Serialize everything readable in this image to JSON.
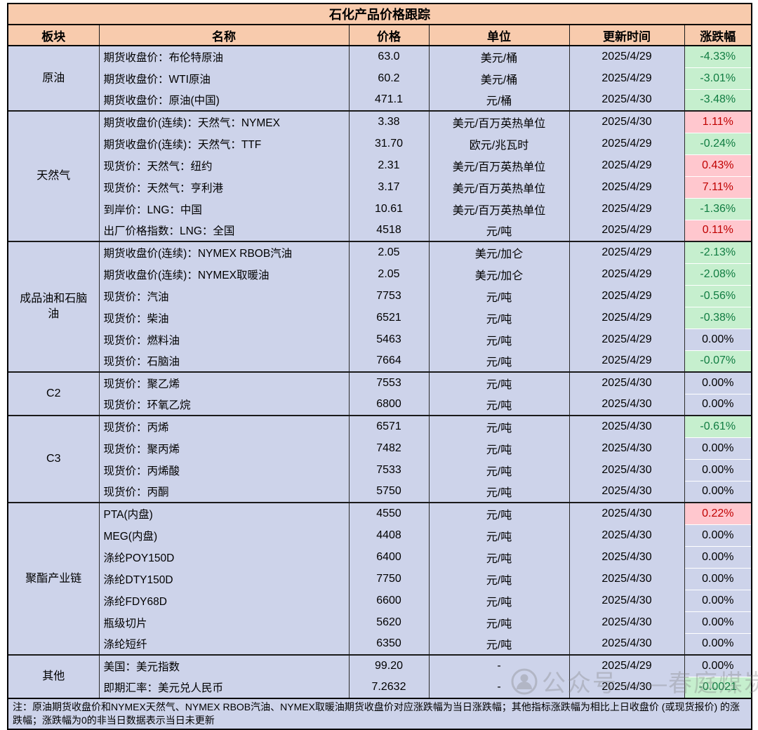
{
  "title": "石化产品价格跟踪",
  "columns": [
    "板块",
    "名称",
    "价格",
    "单位",
    "更新时间",
    "涨跌幅"
  ],
  "sections": [
    {
      "label": "原油",
      "rows": [
        {
          "name": "期货收盘价：布伦特原油",
          "price": "63.0",
          "unit": "美元/桶",
          "date": "2025/4/29",
          "change": "-4.33%",
          "trend": "down"
        },
        {
          "name": "期货收盘价：WTI原油",
          "price": "60.2",
          "unit": "美元/桶",
          "date": "2025/4/29",
          "change": "-3.01%",
          "trend": "down"
        },
        {
          "name": "期货收盘价：原油(中国)",
          "price": "471.1",
          "unit": "元/桶",
          "date": "2025/4/30",
          "change": "-3.48%",
          "trend": "down"
        }
      ]
    },
    {
      "label": "天然气",
      "rows": [
        {
          "name": "期货收盘价(连续)：天然气：NYMEX",
          "price": "3.38",
          "unit": "美元/百万英热单位",
          "date": "2025/4/30",
          "change": "1.11%",
          "trend": "up"
        },
        {
          "name": "期货收盘价(连续)：天然气：TTF",
          "price": "31.70",
          "unit": "欧元/兆瓦时",
          "date": "2025/4/29",
          "change": "-0.24%",
          "trend": "down"
        },
        {
          "name": "现货价：天然气：纽约",
          "price": "2.31",
          "unit": "美元/百万英热单位",
          "date": "2025/4/29",
          "change": "0.43%",
          "trend": "up"
        },
        {
          "name": "现货价：天然气：亨利港",
          "price": "3.17",
          "unit": "美元/百万英热单位",
          "date": "2025/4/29",
          "change": "7.11%",
          "trend": "up"
        },
        {
          "name": "到岸价：LNG：中国",
          "price": "10.61",
          "unit": "美元/百万英热单位",
          "date": "2025/4/29",
          "change": "-1.36%",
          "trend": "down"
        },
        {
          "name": "出厂价格指数：LNG：全国",
          "price": "4518",
          "unit": "元/吨",
          "date": "2025/4/29",
          "change": "0.11%",
          "trend": "up"
        }
      ]
    },
    {
      "label": "成品油和石脑油",
      "rows": [
        {
          "name": "期货收盘价(连续)：NYMEX RBOB汽油",
          "price": "2.05",
          "unit": "美元/加仑",
          "date": "2025/4/29",
          "change": "-2.13%",
          "trend": "down"
        },
        {
          "name": "期货收盘价(连续)：NYMEX取暖油",
          "price": "2.05",
          "unit": "美元/加仑",
          "date": "2025/4/29",
          "change": "-2.08%",
          "trend": "down"
        },
        {
          "name": "现货价：汽油",
          "price": "7753",
          "unit": "元/吨",
          "date": "2025/4/29",
          "change": "-0.56%",
          "trend": "down"
        },
        {
          "name": "现货价：柴油",
          "price": "6521",
          "unit": "元/吨",
          "date": "2025/4/29",
          "change": "-0.38%",
          "trend": "down"
        },
        {
          "name": "现货价：燃料油",
          "price": "5463",
          "unit": "元/吨",
          "date": "2025/4/29",
          "change": "0.00%",
          "trend": "flat"
        },
        {
          "name": "现货价：石脑油",
          "price": "7664",
          "unit": "元/吨",
          "date": "2025/4/29",
          "change": "-0.07%",
          "trend": "down"
        }
      ]
    },
    {
      "label": "C2",
      "rows": [
        {
          "name": "现货价：聚乙烯",
          "price": "7553",
          "unit": "元/吨",
          "date": "2025/4/30",
          "change": "0.00%",
          "trend": "flat"
        },
        {
          "name": "现货价：环氧乙烷",
          "price": "6800",
          "unit": "元/吨",
          "date": "2025/4/30",
          "change": "0.00%",
          "trend": "flat"
        }
      ]
    },
    {
      "label": "C3",
      "rows": [
        {
          "name": "现货价：丙烯",
          "price": "6571",
          "unit": "元/吨",
          "date": "2025/4/30",
          "change": "-0.61%",
          "trend": "down"
        },
        {
          "name": "现货价：聚丙烯",
          "price": "7482",
          "unit": "元/吨",
          "date": "2025/4/30",
          "change": "0.00%",
          "trend": "flat"
        },
        {
          "name": "现货价：丙烯酸",
          "price": "7533",
          "unit": "元/吨",
          "date": "2025/4/30",
          "change": "0.00%",
          "trend": "flat"
        },
        {
          "name": "现货价：丙酮",
          "price": "5750",
          "unit": "元/吨",
          "date": "2025/4/30",
          "change": "0.00%",
          "trend": "flat"
        }
      ]
    },
    {
      "label": "聚酯产业链",
      "rows": [
        {
          "name": "PTA(内盘)",
          "price": "4550",
          "unit": "元/吨",
          "date": "2025/4/30",
          "change": "0.22%",
          "trend": "up"
        },
        {
          "name": "MEG(内盘)",
          "price": "4408",
          "unit": "元/吨",
          "date": "2025/4/30",
          "change": "0.00%",
          "trend": "flat"
        },
        {
          "name": "涤纶POY150D",
          "price": "6400",
          "unit": "元/吨",
          "date": "2025/4/30",
          "change": "0.00%",
          "trend": "flat"
        },
        {
          "name": "涤纶DTY150D",
          "price": "7750",
          "unit": "元/吨",
          "date": "2025/4/30",
          "change": "0.00%",
          "trend": "flat"
        },
        {
          "name": "涤纶FDY68D",
          "price": "6600",
          "unit": "元/吨",
          "date": "2025/4/30",
          "change": "0.00%",
          "trend": "flat"
        },
        {
          "name": "瓶级切片",
          "price": "5620",
          "unit": "元/吨",
          "date": "2025/4/30",
          "change": "0.00%",
          "trend": "flat"
        },
        {
          "name": "涤纶短纤",
          "price": "6350",
          "unit": "元/吨",
          "date": "2025/4/30",
          "change": "0.00%",
          "trend": "flat"
        }
      ]
    },
    {
      "label": "其他",
      "rows": [
        {
          "name": "美国：美元指数",
          "price": "99.20",
          "unit": "-",
          "date": "2025/4/29",
          "change": "0.00%",
          "trend": "flat"
        },
        {
          "name": "即期汇率：美元兑人民币",
          "price": "7.2632",
          "unit": "-",
          "date": "2025/4/30",
          "change": "-0.0021",
          "trend": "down"
        }
      ]
    }
  ],
  "footnote": "注：原油期货收盘价和NYMEX天然气、NYMEX RBOB汽油、NYMEX取暖油期货收盘价对应涨跌幅为当日涨跌幅；其他指标涨跌幅为相比上日收盘价 (或现货报价) 的涨跌幅；涨跌幅为0的非当日数据表示当日未更新",
  "watermark": {
    "text": "公众号——春庭煤炭"
  },
  "colors": {
    "header_bg": "#F8CBAD",
    "row_bg": "#CDD3EA",
    "up_bg": "#FFC7CE",
    "up_text": "#C00000",
    "down_bg": "#C6EFCE",
    "down_text": "#107C41"
  }
}
